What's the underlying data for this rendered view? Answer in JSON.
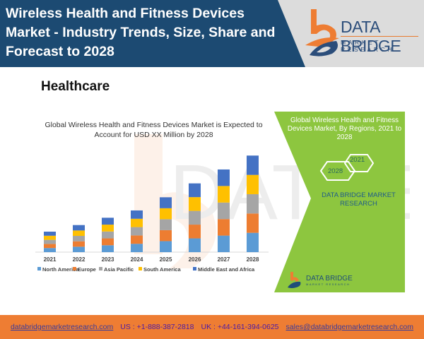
{
  "header": {
    "title": "Wireless Health and Fitness Devices Market - Industry Trends, Size, Share and Forecast to 2028",
    "logo_name": "DATA BRIDGE",
    "logo_sub": "MARKET RESEARCH"
  },
  "section_title": "Healthcare",
  "side_panel": {
    "title": "Global Wireless Health and Fitness Devices Market, By Regions, 2021 to 2028",
    "hex_a": "2021",
    "hex_b": "2028",
    "brand": "DATA BRIDGE MARKET RESEARCH",
    "logo_name": "DATA BRIDGE",
    "logo_sub": "MARKET RESEARCH"
  },
  "footer": {
    "website": "databridgemarketresearch.com",
    "us": "US : +1-888-387-2818",
    "uk": "UK : +44-161-394-0625",
    "email": "sales@databridgemarketresearch.com"
  },
  "colors": {
    "header_blue": "#1c4a72",
    "accent_orange": "#ee7d33",
    "panel_green": "#8dc63f"
  },
  "chart_data": {
    "type": "bar",
    "stacked": true,
    "title": "Global Wireless Health and Fitness Devices Market is Expected to Account for USD XX Million by 2028",
    "categories": [
      "2021",
      "2022",
      "2023",
      "2024",
      "2025",
      "2026",
      "2027",
      "2028"
    ],
    "series": [
      {
        "name": "North America",
        "color": "#5b9bd5",
        "values": [
          5.6,
          7.4,
          9.4,
          11.4,
          15,
          18.8,
          22.6,
          26.4
        ]
      },
      {
        "name": "Europe",
        "color": "#ed7d31",
        "values": [
          5.6,
          7.4,
          9.4,
          11.4,
          15,
          18.8,
          22.6,
          26.4
        ]
      },
      {
        "name": "Asia Pacific",
        "color": "#a5a5a5",
        "values": [
          5.6,
          7.4,
          9.4,
          11.4,
          15,
          18.8,
          22.6,
          26.4
        ]
      },
      {
        "name": "South America",
        "color": "#ffc000",
        "values": [
          5.6,
          7.4,
          9.4,
          11.4,
          15,
          18.8,
          22.6,
          26.4
        ]
      },
      {
        "name": "Middle East and Africa",
        "color": "#4472c4",
        "values": [
          5.6,
          7.4,
          9.4,
          11.4,
          15,
          18.8,
          22.6,
          26.4
        ]
      }
    ],
    "xlabel": "",
    "ylabel": "",
    "ylim": [
      0,
      140
    ],
    "grid": false,
    "legend": "bottom"
  }
}
